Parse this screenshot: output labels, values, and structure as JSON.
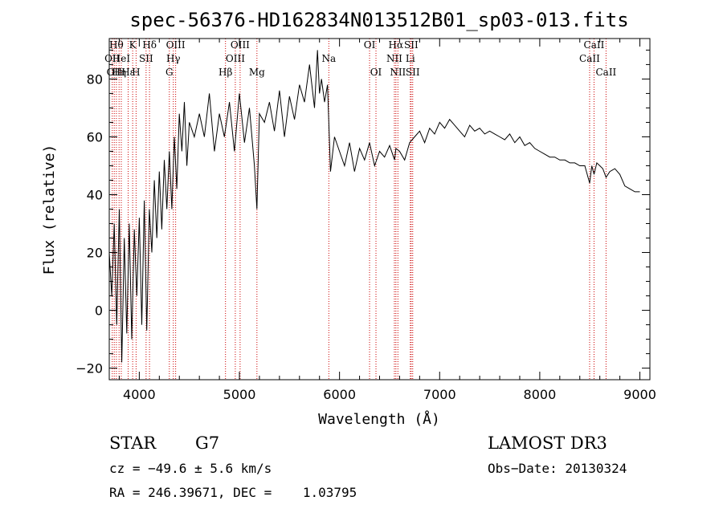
{
  "chart_data": {
    "type": "line",
    "title": "spec-56376-HD162834N013512B01_sp03-013.fits",
    "xlabel": "Wavelength (Å)",
    "ylabel": "Flux (relative)",
    "xlim": [
      3700,
      9100
    ],
    "ylim": [
      -24,
      94
    ],
    "xticks": [
      4000,
      5000,
      6000,
      7000,
      8000,
      9000
    ],
    "yticks": [
      -20,
      0,
      20,
      40,
      60,
      80
    ],
    "grid": false,
    "line_color": "#000000",
    "marker_color": "#cc0000",
    "spectral_lines": [
      {
        "wl": 3730,
        "label": "OII",
        "row": 2
      },
      {
        "wl": 3750,
        "label": "OII",
        "row": 3
      },
      {
        "wl": 3771,
        "label": "Hθ",
        "row": 1
      },
      {
        "wl": 3798,
        "label": "Hη",
        "row": 3
      },
      {
        "wl": 3820,
        "label": "HeI",
        "row": 2
      },
      {
        "wl": 3889,
        "label": "Hε",
        "row": 3
      },
      {
        "wl": 3934,
        "label": "K",
        "row": 1
      },
      {
        "wl": 3968,
        "label": "H",
        "row": 3
      },
      {
        "wl": 4068,
        "label": "SII",
        "row": 2
      },
      {
        "wl": 4102,
        "label": "Hδ",
        "row": 1
      },
      {
        "wl": 4300,
        "label": "G",
        "row": 3
      },
      {
        "wl": 4340,
        "label": "Hγ",
        "row": 2
      },
      {
        "wl": 4363,
        "label": "OIII",
        "row": 1
      },
      {
        "wl": 4861,
        "label": "Hβ",
        "row": 3
      },
      {
        "wl": 4959,
        "label": "OIII",
        "row": 2
      },
      {
        "wl": 5007,
        "label": "OIII",
        "row": 1
      },
      {
        "wl": 5175,
        "label": "Mg",
        "row": 3
      },
      {
        "wl": 5893,
        "label": "Na",
        "row": 2
      },
      {
        "wl": 6300,
        "label": "OI",
        "row": 1
      },
      {
        "wl": 6364,
        "label": "OI",
        "row": 3
      },
      {
        "wl": 6548,
        "label": "NII",
        "row": 2
      },
      {
        "wl": 6563,
        "label": "Hα",
        "row": 1
      },
      {
        "wl": 6583,
        "label": "NII",
        "row": 3
      },
      {
        "wl": 6707,
        "label": "Li",
        "row": 2
      },
      {
        "wl": 6716,
        "label": "SII",
        "row": 1
      },
      {
        "wl": 6731,
        "label": "SII",
        "row": 3
      },
      {
        "wl": 8498,
        "label": "CaII",
        "row": 2
      },
      {
        "wl": 8542,
        "label": "CaII",
        "row": 1
      },
      {
        "wl": 8662,
        "label": "CaII",
        "row": 3
      }
    ],
    "series": [
      {
        "x": [
          3700,
          3725,
          3750,
          3775,
          3800,
          3825,
          3850,
          3875,
          3900,
          3925,
          3950,
          3975,
          4000,
          4025,
          4050,
          4075,
          4100,
          4125,
          4150,
          4175,
          4200,
          4225,
          4250,
          4275,
          4300,
          4325,
          4350,
          4375,
          4400,
          4425,
          4450,
          4475,
          4500,
          4550,
          4600,
          4650,
          4700,
          4750,
          4800,
          4850,
          4900,
          4950,
          5000,
          5050,
          5100,
          5150,
          5175,
          5200,
          5250,
          5300,
          5350,
          5400,
          5450,
          5500,
          5550,
          5600,
          5650,
          5700,
          5750,
          5780,
          5800,
          5820,
          5850,
          5880,
          5893,
          5910,
          5950,
          6000,
          6050,
          6100,
          6150,
          6200,
          6250,
          6300,
          6350,
          6400,
          6450,
          6500,
          6550,
          6563,
          6600,
          6650,
          6700,
          6750,
          6800,
          6850,
          6900,
          6950,
          7000,
          7050,
          7100,
          7150,
          7200,
          7250,
          7300,
          7350,
          7400,
          7450,
          7500,
          7550,
          7600,
          7650,
          7700,
          7750,
          7800,
          7850,
          7900,
          7950,
          8000,
          8050,
          8100,
          8150,
          8200,
          8250,
          8300,
          8350,
          8400,
          8450,
          8498,
          8520,
          8542,
          8570,
          8600,
          8630,
          8662,
          8700,
          8750,
          8800,
          8850,
          8900,
          8950,
          9000
        ],
        "y": [
          20,
          5,
          30,
          -5,
          35,
          -18,
          25,
          -8,
          30,
          -10,
          28,
          5,
          32,
          -5,
          38,
          -7,
          35,
          20,
          45,
          25,
          48,
          28,
          52,
          35,
          55,
          35,
          60,
          42,
          68,
          55,
          72,
          50,
          65,
          60,
          68,
          60,
          75,
          55,
          68,
          60,
          72,
          55,
          75,
          58,
          70,
          50,
          35,
          68,
          65,
          72,
          62,
          76,
          60,
          74,
          66,
          78,
          72,
          85,
          70,
          90,
          75,
          80,
          72,
          78,
          65,
          48,
          60,
          55,
          50,
          58,
          48,
          56,
          52,
          58,
          50,
          55,
          53,
          57,
          52,
          56,
          55,
          52,
          58,
          60,
          62,
          58,
          63,
          61,
          65,
          63,
          66,
          64,
          62,
          60,
          64,
          62,
          63,
          61,
          62,
          61,
          60,
          59,
          61,
          58,
          60,
          57,
          58,
          56,
          55,
          54,
          53,
          53,
          52,
          52,
          51,
          51,
          50,
          50,
          44,
          50,
          47,
          51,
          50,
          49,
          46,
          48,
          49,
          47,
          43,
          42,
          41,
          41
        ]
      }
    ]
  },
  "info": {
    "object_type": "STAR",
    "subclass": "G7",
    "survey": "LAMOST DR3",
    "cz": "cz = −49.6 ± 5.6 km/s",
    "obs_date": "Obs−Date: 20130324",
    "coords": "RA = 246.39671, DEC =    1.03795"
  }
}
